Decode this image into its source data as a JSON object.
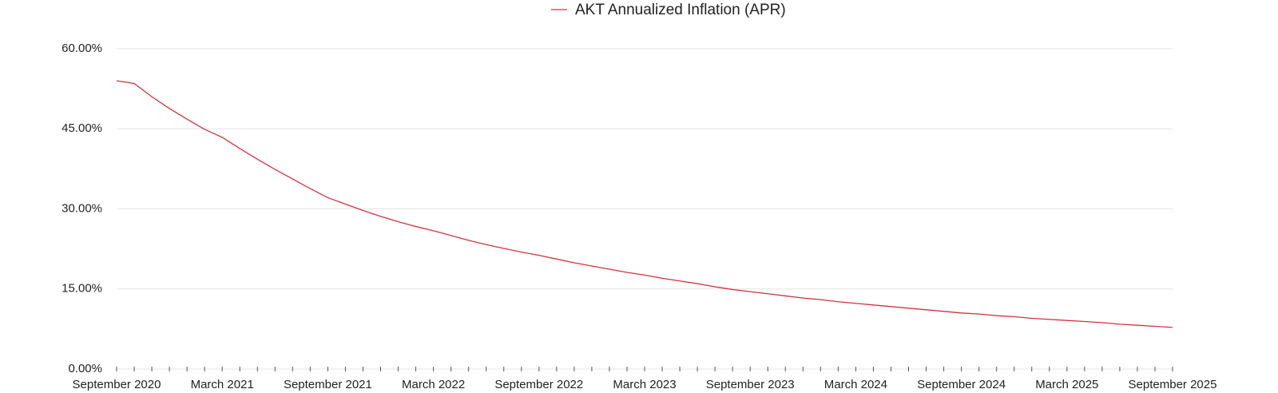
{
  "chart_data": {
    "type": "line",
    "categories": [
      "September 2020",
      null,
      null,
      null,
      null,
      null,
      "March 2021",
      null,
      null,
      null,
      null,
      null,
      "September 2021",
      null,
      null,
      null,
      null,
      null,
      "March 2022",
      null,
      null,
      null,
      null,
      null,
      "September 2022",
      null,
      null,
      null,
      null,
      null,
      "March 2023",
      null,
      null,
      null,
      null,
      null,
      "September 2023",
      null,
      null,
      null,
      null,
      null,
      "March 2024",
      null,
      null,
      null,
      null,
      null,
      "September 2024",
      null,
      null,
      null,
      null,
      null,
      "March 2025",
      null,
      null,
      null,
      null,
      null,
      "September 2025"
    ],
    "series": [
      {
        "name": "AKT Annualized Inflation (APR)",
        "color": "#d0343e",
        "values": [
          54.0,
          53.5,
          51.0,
          48.8,
          46.8,
          44.9,
          43.4,
          41.3,
          39.3,
          37.4,
          35.6,
          33.8,
          32.1,
          30.9,
          29.7,
          28.6,
          27.6,
          26.7,
          25.9,
          25.0,
          24.1,
          23.3,
          22.6,
          21.9,
          21.3,
          20.6,
          19.9,
          19.3,
          18.7,
          18.1,
          17.6,
          17.0,
          16.5,
          16.0,
          15.4,
          14.9,
          14.5,
          14.1,
          13.7,
          13.3,
          13.0,
          12.6,
          12.3,
          12.0,
          11.7,
          11.4,
          11.1,
          10.8,
          10.5,
          10.3,
          10.0,
          9.8,
          9.5,
          9.3,
          9.1,
          8.9,
          8.7,
          8.4,
          8.2,
          8.0,
          7.8
        ]
      }
    ],
    "ylim": [
      0,
      60
    ],
    "yticks": [
      {
        "value": 0,
        "label": "0.00%"
      },
      {
        "value": 15,
        "label": "15.00%"
      },
      {
        "value": 30,
        "label": "30.00%"
      },
      {
        "value": 45,
        "label": "45.00%"
      },
      {
        "value": 60,
        "label": "60.00%"
      }
    ],
    "grid": true
  }
}
